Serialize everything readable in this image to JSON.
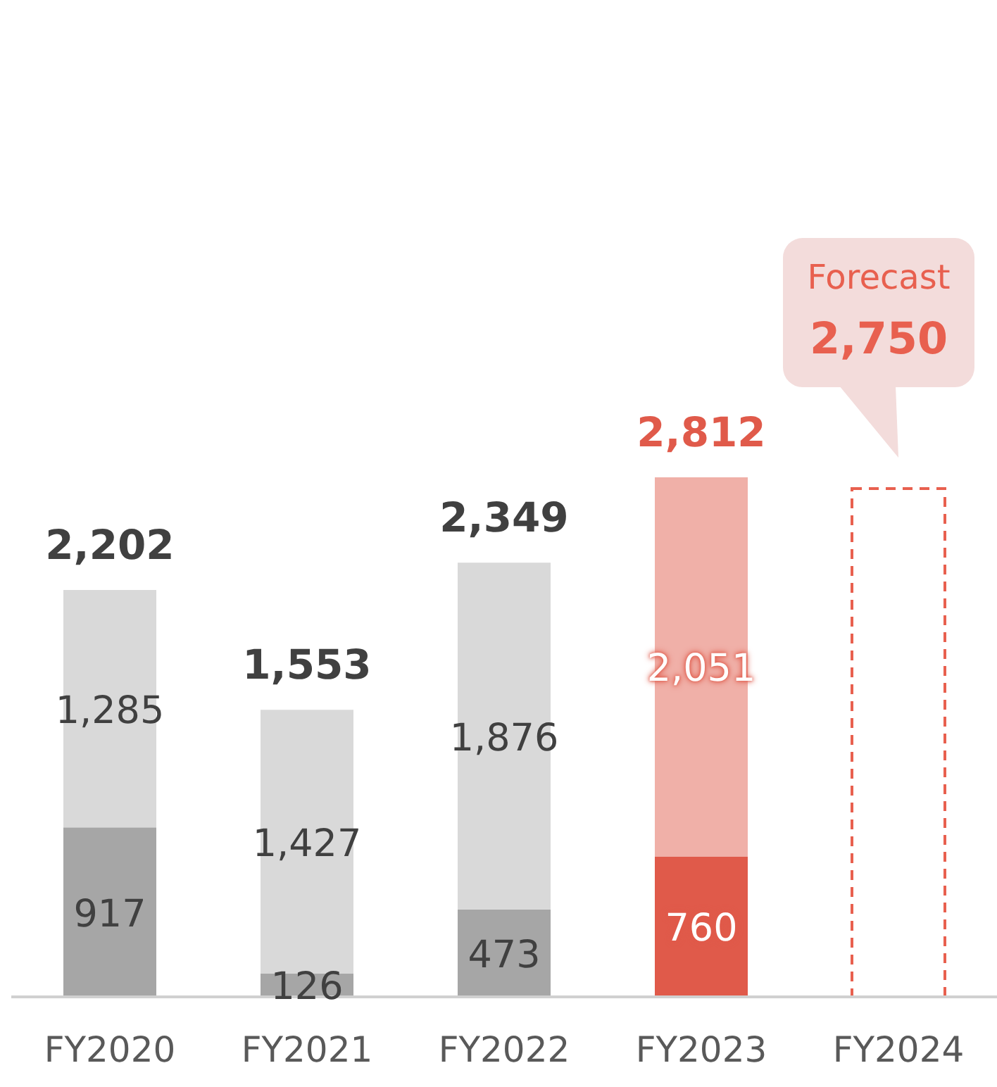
{
  "chart_data": {
    "type": "bar",
    "stacked": true,
    "categories": [
      "FY2020",
      "FY2021",
      "FY2022",
      "FY2023",
      "FY2024"
    ],
    "tick_labels": "x",
    "data_labels": true,
    "series": [
      {
        "values": [
          917,
          126,
          473,
          760,
          null
        ],
        "colors": [
          "#a6a6a6",
          "#a6a6a6",
          "#a6a6a6",
          "#e05a4a",
          "#e05a4a"
        ],
        "value_labels": [
          "917",
          "126",
          "473",
          "760",
          null
        ]
      },
      {
        "values": [
          1285,
          1427,
          1876,
          2051,
          null
        ],
        "colors": [
          "#d9d9d9",
          "#d9d9d9",
          "#d9d9d9",
          "#f0b0a8",
          "#f0b0a8"
        ],
        "value_labels": [
          "1,285",
          "1,427",
          "1,876",
          "2,051",
          null
        ]
      },
      {
        "values": [
          null,
          null,
          null,
          null,
          2750
        ],
        "color": "#e8604f",
        "line_style": "dashed",
        "value_labels": [
          null,
          null,
          null,
          null,
          "2,750"
        ]
      }
    ],
    "totals": [
      "2,202",
      "1,553",
      "2,349",
      "2,812",
      null
    ],
    "annotations": [
      "Forecast"
    ]
  }
}
